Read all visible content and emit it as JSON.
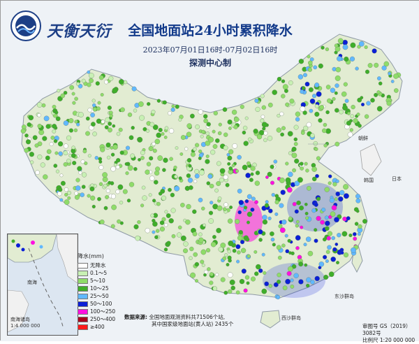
{
  "header": {
    "brand_name": "天衡天衍",
    "logo_icon": "globe-wave-logo",
    "title": "全国地面站24小时累积降水",
    "period": "2023年07月01日16时-07月02日16时",
    "producer": "探测中心制"
  },
  "legend": {
    "title": "降水(mm)",
    "items": [
      {
        "label": "无降水",
        "color": "#ffffff"
      },
      {
        "label": "0.1～5",
        "color": "#c8f0b4"
      },
      {
        "label": "5～10",
        "color": "#8fdc6a"
      },
      {
        "label": "10～25",
        "color": "#3fae2a"
      },
      {
        "label": "25～50",
        "color": "#61b8ff"
      },
      {
        "label": "50～100",
        "color": "#0a1fd6"
      },
      {
        "label": "100～250",
        "color": "#ff10e0"
      },
      {
        "label": "250～400",
        "color": "#a8001c"
      },
      {
        "label": "≥400",
        "color": "#ff1a1a"
      }
    ]
  },
  "source": {
    "label": "数据来源:",
    "line1": "全国地面观测资料共71506个站,",
    "line2": "其中国家级地面站(黄人站) 2435个"
  },
  "inset": {
    "label": "南海诸岛",
    "scale": "1:4 000 000"
  },
  "approval": {
    "number_label": "审图号",
    "number": "GS（2019）3082号",
    "scale_label": "比例尺",
    "scale": "1:20 000 000"
  },
  "places": [
    "东沙群岛",
    "西沙群岛",
    "南海",
    "朝鲜",
    "韩国",
    "日本"
  ],
  "colors": {
    "land": "#e2ecd2",
    "sea": "#dce6f1",
    "title": "#123a8a"
  }
}
